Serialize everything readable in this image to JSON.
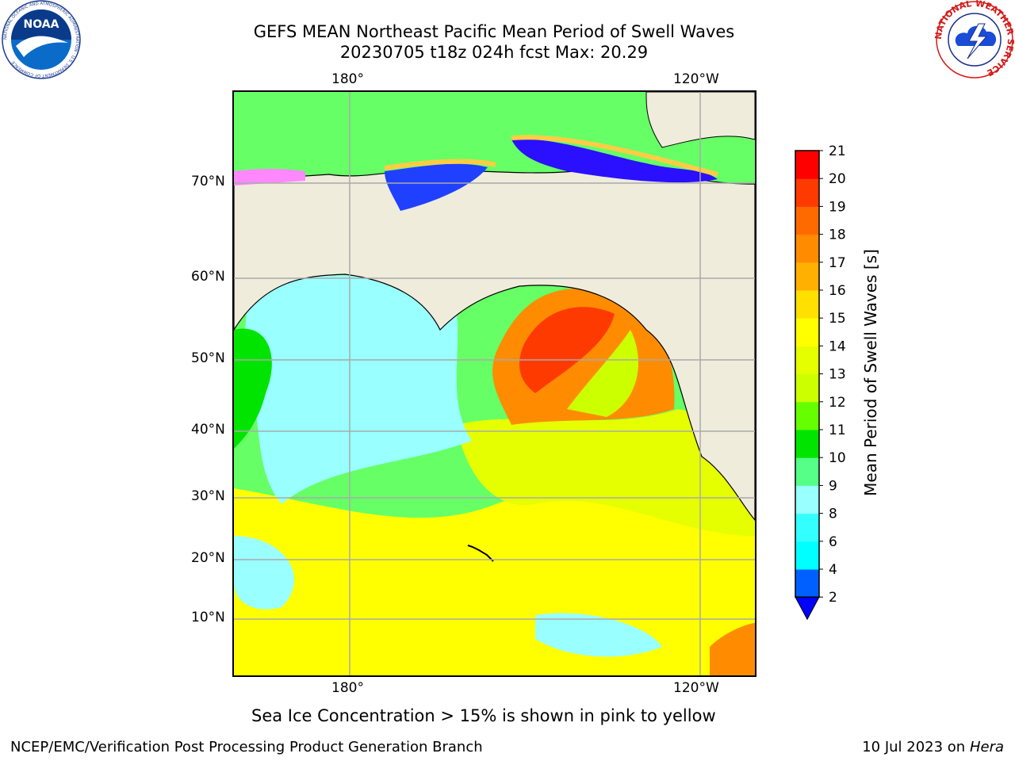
{
  "title": {
    "line1": "GEFS MEAN Northeast Pacific Mean Period of Swell Waves",
    "line2": "20230705 t18z 024h fcst   Max: 20.29"
  },
  "map": {
    "top_lon_labels": [
      "180°",
      "120°W"
    ],
    "bottom_lon_labels": [
      "180°",
      "120°W"
    ],
    "lat_labels": [
      "70°N",
      "60°N",
      "50°N",
      "40°N",
      "30°N",
      "20°N",
      "10°N"
    ],
    "land_color": "#efecdc",
    "ocean_base_color": "#66ff66"
  },
  "colorbar": {
    "label": "Mean Period of Swell Waves [s]",
    "ticks": [
      "2",
      "4",
      "6",
      "8",
      "9",
      "10",
      "11",
      "12",
      "13",
      "14",
      "15",
      "16",
      "17",
      "18",
      "19",
      "20",
      "21"
    ],
    "colors": [
      "#0060ff",
      "#00ffff",
      "#33ffff",
      "#99ffff",
      "#55ff88",
      "#00e400",
      "#66ff00",
      "#ccff00",
      "#e6ff00",
      "#ffff00",
      "#ffe000",
      "#ffb000",
      "#ff8c00",
      "#ff6a00",
      "#ff3a00",
      "#ff0000"
    ],
    "extend_color": "#0000ff"
  },
  "note": "Sea Ice Concentration > 15% is shown in pink to yellow",
  "footer": {
    "left": "NCEP/EMC/Verification Post Processing Product Generation Branch",
    "date": "10 Jul 2023 on",
    "machine": "Hera"
  },
  "logos": {
    "noaa_text": "NOAA",
    "noaa_ring": "NATIONAL OCEANIC AND ATMOSPHERIC ADMINISTRATION · U.S. DEPARTMENT OF COMMERCE",
    "nws_ring": "NATIONAL WEATHER SERVICE"
  }
}
